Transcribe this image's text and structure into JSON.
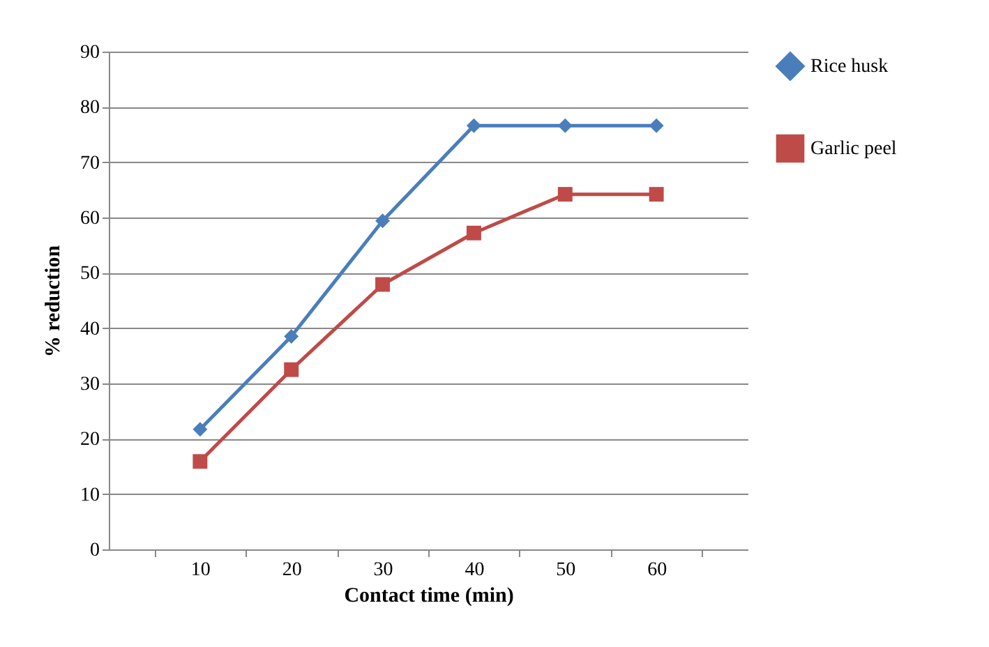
{
  "chart_data": {
    "type": "line",
    "xlabel": "Contact time (min)",
    "ylabel": "% reduction",
    "categories": [
      "10",
      "20",
      "30",
      "40",
      "50",
      "60"
    ],
    "series": [
      {
        "name": "Rice husk",
        "color": "#4a7ebb",
        "marker": "diamond",
        "values": [
          21.7,
          38.5,
          59.4,
          76.6,
          76.6,
          76.6
        ]
      },
      {
        "name": "Garlic peel",
        "color": "#be4b48",
        "marker": "square",
        "values": [
          15.9,
          32.5,
          47.9,
          57.2,
          64.2,
          64.2
        ]
      }
    ],
    "ylim": [
      0,
      90
    ],
    "yticks": [
      0,
      10,
      20,
      30,
      40,
      50,
      60,
      70,
      80,
      90
    ],
    "grid": "y",
    "legend": "right",
    "line_style": "solid"
  }
}
